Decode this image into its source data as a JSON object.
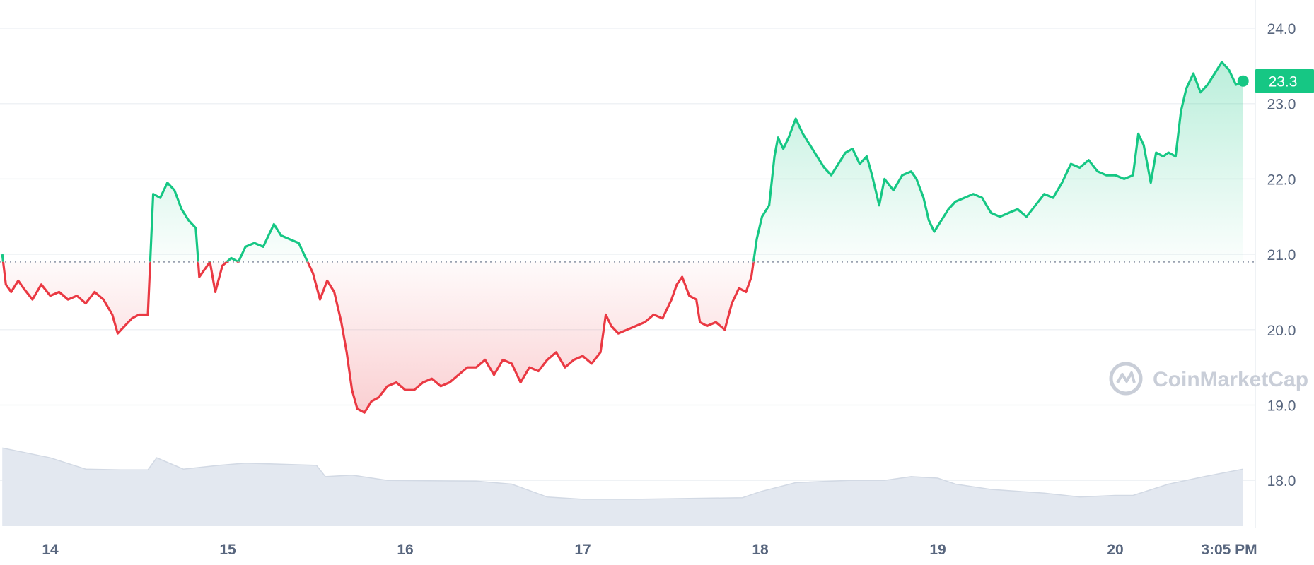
{
  "chart_data": {
    "type": "area",
    "baseline": 20.9,
    "current_value": "23.3",
    "ylim": [
      17.4,
      24.4
    ],
    "y_ticks": [
      "24.0",
      "23.0",
      "22.0",
      "21.0",
      "20.0",
      "19.0",
      "18.0"
    ],
    "x_ticks": [
      "14",
      "15",
      "16",
      "17",
      "18",
      "19",
      "20",
      "3:05 PM"
    ],
    "colors": {
      "up": "#16c784",
      "down": "#ea3943",
      "volume": "#dde3ee",
      "grid": "#eff2f5",
      "text": "#58667e"
    },
    "watermark": "CoinMarketCap",
    "price_series": [
      [
        13.73,
        21.0
      ],
      [
        13.75,
        20.6
      ],
      [
        13.78,
        20.5
      ],
      [
        13.82,
        20.65
      ],
      [
        13.85,
        20.55
      ],
      [
        13.9,
        20.4
      ],
      [
        13.95,
        20.6
      ],
      [
        14.0,
        20.45
      ],
      [
        14.05,
        20.5
      ],
      [
        14.1,
        20.4
      ],
      [
        14.15,
        20.45
      ],
      [
        14.2,
        20.35
      ],
      [
        14.25,
        20.5
      ],
      [
        14.3,
        20.4
      ],
      [
        14.35,
        20.2
      ],
      [
        14.38,
        19.95
      ],
      [
        14.42,
        20.05
      ],
      [
        14.46,
        20.15
      ],
      [
        14.5,
        20.2
      ],
      [
        14.55,
        20.2
      ],
      [
        14.58,
        21.8
      ],
      [
        14.62,
        21.75
      ],
      [
        14.66,
        21.95
      ],
      [
        14.7,
        21.85
      ],
      [
        14.74,
        21.6
      ],
      [
        14.78,
        21.45
      ],
      [
        14.82,
        21.35
      ],
      [
        14.84,
        20.7
      ],
      [
        14.87,
        20.8
      ],
      [
        14.9,
        20.9
      ],
      [
        14.93,
        20.5
      ],
      [
        14.97,
        20.85
      ],
      [
        15.02,
        20.95
      ],
      [
        15.06,
        20.9
      ],
      [
        15.1,
        21.1
      ],
      [
        15.15,
        21.15
      ],
      [
        15.2,
        21.1
      ],
      [
        15.26,
        21.4
      ],
      [
        15.3,
        21.25
      ],
      [
        15.35,
        21.2
      ],
      [
        15.4,
        21.15
      ],
      [
        15.44,
        20.95
      ],
      [
        15.48,
        20.75
      ],
      [
        15.52,
        20.4
      ],
      [
        15.56,
        20.65
      ],
      [
        15.6,
        20.5
      ],
      [
        15.64,
        20.1
      ],
      [
        15.67,
        19.7
      ],
      [
        15.7,
        19.2
      ],
      [
        15.73,
        18.95
      ],
      [
        15.77,
        18.9
      ],
      [
        15.81,
        19.05
      ],
      [
        15.85,
        19.1
      ],
      [
        15.9,
        19.25
      ],
      [
        15.95,
        19.3
      ],
      [
        16.0,
        19.2
      ],
      [
        16.05,
        19.2
      ],
      [
        16.1,
        19.3
      ],
      [
        16.15,
        19.35
      ],
      [
        16.2,
        19.25
      ],
      [
        16.25,
        19.3
      ],
      [
        16.3,
        19.4
      ],
      [
        16.35,
        19.5
      ],
      [
        16.4,
        19.5
      ],
      [
        16.45,
        19.6
      ],
      [
        16.5,
        19.4
      ],
      [
        16.55,
        19.6
      ],
      [
        16.6,
        19.55
      ],
      [
        16.65,
        19.3
      ],
      [
        16.7,
        19.5
      ],
      [
        16.75,
        19.45
      ],
      [
        16.8,
        19.6
      ],
      [
        16.85,
        19.7
      ],
      [
        16.9,
        19.5
      ],
      [
        16.95,
        19.6
      ],
      [
        17.0,
        19.65
      ],
      [
        17.05,
        19.55
      ],
      [
        17.1,
        19.7
      ],
      [
        17.13,
        20.2
      ],
      [
        17.16,
        20.05
      ],
      [
        17.2,
        19.95
      ],
      [
        17.25,
        20.0
      ],
      [
        17.3,
        20.05
      ],
      [
        17.35,
        20.1
      ],
      [
        17.4,
        20.2
      ],
      [
        17.45,
        20.15
      ],
      [
        17.5,
        20.4
      ],
      [
        17.53,
        20.6
      ],
      [
        17.56,
        20.7
      ],
      [
        17.6,
        20.45
      ],
      [
        17.64,
        20.4
      ],
      [
        17.66,
        20.1
      ],
      [
        17.7,
        20.05
      ],
      [
        17.75,
        20.1
      ],
      [
        17.8,
        20.0
      ],
      [
        17.84,
        20.35
      ],
      [
        17.88,
        20.55
      ],
      [
        17.92,
        20.5
      ],
      [
        17.95,
        20.7
      ],
      [
        17.98,
        21.2
      ],
      [
        18.01,
        21.5
      ],
      [
        18.05,
        21.65
      ],
      [
        18.08,
        22.3
      ],
      [
        18.1,
        22.55
      ],
      [
        18.13,
        22.4
      ],
      [
        18.16,
        22.55
      ],
      [
        18.2,
        22.8
      ],
      [
        18.24,
        22.6
      ],
      [
        18.28,
        22.45
      ],
      [
        18.32,
        22.3
      ],
      [
        18.36,
        22.15
      ],
      [
        18.4,
        22.05
      ],
      [
        18.44,
        22.2
      ],
      [
        18.48,
        22.35
      ],
      [
        18.52,
        22.4
      ],
      [
        18.56,
        22.2
      ],
      [
        18.6,
        22.3
      ],
      [
        18.63,
        22.05
      ],
      [
        18.67,
        21.65
      ],
      [
        18.7,
        22.0
      ],
      [
        18.75,
        21.85
      ],
      [
        18.8,
        22.05
      ],
      [
        18.85,
        22.1
      ],
      [
        18.88,
        22.0
      ],
      [
        18.92,
        21.75
      ],
      [
        18.95,
        21.45
      ],
      [
        18.98,
        21.3
      ],
      [
        19.02,
        21.45
      ],
      [
        19.06,
        21.6
      ],
      [
        19.1,
        21.7
      ],
      [
        19.15,
        21.75
      ],
      [
        19.2,
        21.8
      ],
      [
        19.25,
        21.75
      ],
      [
        19.3,
        21.55
      ],
      [
        19.35,
        21.5
      ],
      [
        19.4,
        21.55
      ],
      [
        19.45,
        21.6
      ],
      [
        19.5,
        21.5
      ],
      [
        19.55,
        21.65
      ],
      [
        19.6,
        21.8
      ],
      [
        19.65,
        21.75
      ],
      [
        19.7,
        21.95
      ],
      [
        19.75,
        22.2
      ],
      [
        19.8,
        22.15
      ],
      [
        19.85,
        22.25
      ],
      [
        19.9,
        22.1
      ],
      [
        19.95,
        22.05
      ],
      [
        20.0,
        22.05
      ],
      [
        20.05,
        22.0
      ],
      [
        20.1,
        22.05
      ],
      [
        20.13,
        22.6
      ],
      [
        20.16,
        22.45
      ],
      [
        20.2,
        21.95
      ],
      [
        20.23,
        22.35
      ],
      [
        20.27,
        22.3
      ],
      [
        20.3,
        22.35
      ],
      [
        20.34,
        22.3
      ],
      [
        20.37,
        22.9
      ],
      [
        20.4,
        23.2
      ],
      [
        20.44,
        23.4
      ],
      [
        20.48,
        23.15
      ],
      [
        20.52,
        23.25
      ],
      [
        20.56,
        23.4
      ],
      [
        20.6,
        23.55
      ],
      [
        20.64,
        23.45
      ],
      [
        20.68,
        23.25
      ],
      [
        20.72,
        23.3
      ]
    ],
    "volume_series": [
      [
        13.73,
        18.43
      ],
      [
        14.0,
        18.3
      ],
      [
        14.2,
        18.15
      ],
      [
        14.4,
        18.14
      ],
      [
        14.55,
        18.14
      ],
      [
        14.6,
        18.3
      ],
      [
        14.75,
        18.15
      ],
      [
        14.95,
        18.2
      ],
      [
        15.1,
        18.23
      ],
      [
        15.5,
        18.2
      ],
      [
        15.55,
        18.05
      ],
      [
        15.7,
        18.07
      ],
      [
        15.9,
        18.0
      ],
      [
        16.4,
        17.99
      ],
      [
        16.6,
        17.95
      ],
      [
        16.8,
        17.78
      ],
      [
        17.0,
        17.75
      ],
      [
        17.3,
        17.75
      ],
      [
        17.6,
        17.76
      ],
      [
        17.9,
        17.77
      ],
      [
        18.0,
        17.85
      ],
      [
        18.2,
        17.97
      ],
      [
        18.5,
        18.0
      ],
      [
        18.7,
        18.0
      ],
      [
        18.85,
        18.05
      ],
      [
        19.0,
        18.03
      ],
      [
        19.1,
        17.95
      ],
      [
        19.3,
        17.88
      ],
      [
        19.6,
        17.83
      ],
      [
        19.8,
        17.78
      ],
      [
        20.0,
        17.8
      ],
      [
        20.1,
        17.8
      ],
      [
        20.3,
        17.95
      ],
      [
        20.5,
        18.05
      ],
      [
        20.72,
        18.15
      ]
    ]
  }
}
